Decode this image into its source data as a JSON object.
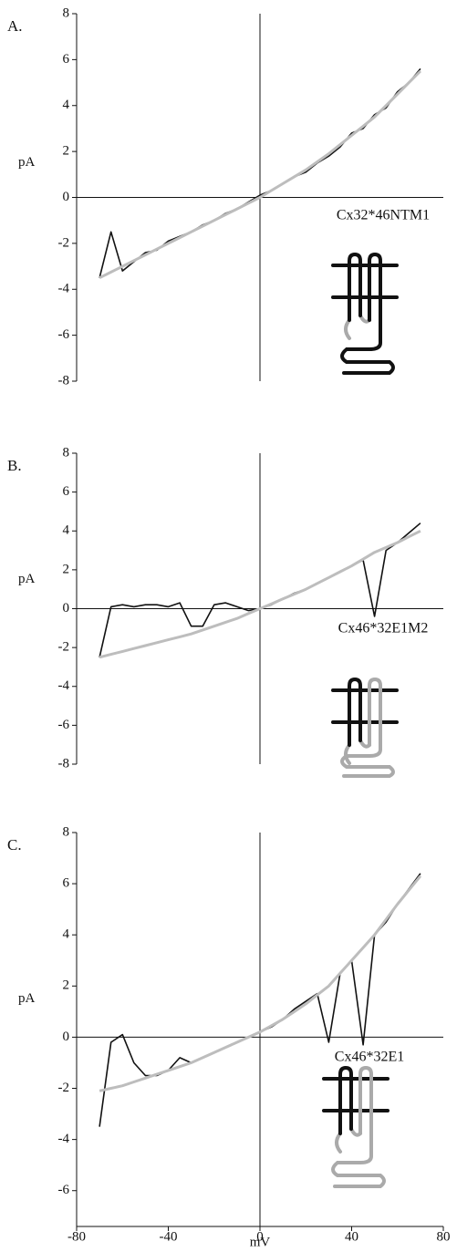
{
  "chart_data": [
    {
      "type": "line",
      "panel_label": "A.",
      "ylabel": "pA",
      "annotation": "Cx32*46NTM1",
      "x": [
        -70,
        -65,
        -60,
        -55,
        -50,
        -45,
        -40,
        -35,
        -30,
        -25,
        -20,
        -15,
        -10,
        -5,
        0,
        5,
        10,
        15,
        20,
        25,
        30,
        35,
        40,
        45,
        50,
        55,
        60,
        65,
        70
      ],
      "series": [
        {
          "color": "#111111",
          "values": [
            -3.5,
            -1.5,
            -3.2,
            -2.8,
            -2.4,
            -2.3,
            -1.9,
            -1.7,
            -1.5,
            -1.2,
            -1.0,
            -0.7,
            -0.5,
            -0.2,
            0.1,
            0.3,
            0.6,
            0.9,
            1.1,
            1.5,
            1.8,
            2.2,
            2.8,
            3.0,
            3.6,
            3.9,
            4.6,
            5.0,
            5.6
          ]
        },
        {
          "color": "#bdbdbd",
          "values": [
            -3.5,
            -3.25,
            -3.0,
            -2.75,
            -2.5,
            -2.25,
            -2.0,
            -1.75,
            -1.5,
            -1.25,
            -1.0,
            -0.75,
            -0.5,
            -0.25,
            0,
            0.3,
            0.6,
            0.9,
            1.2,
            1.55,
            1.9,
            2.3,
            2.7,
            3.1,
            3.5,
            4.0,
            4.5,
            5.0,
            5.5
          ]
        }
      ],
      "xlim": [
        -80,
        80
      ],
      "ylim": [
        -8,
        8
      ],
      "yticks": [
        -8,
        -6,
        -4,
        -2,
        0,
        2,
        4,
        6,
        8
      ]
    },
    {
      "type": "line",
      "panel_label": "B.",
      "ylabel": "pA",
      "annotation": "Cx46*32E1M2",
      "x": [
        -70,
        -65,
        -60,
        -55,
        -50,
        -45,
        -40,
        -35,
        -30,
        -25,
        -20,
        -15,
        -10,
        -5,
        0,
        5,
        10,
        15,
        20,
        25,
        30,
        35,
        40,
        45,
        50,
        55,
        60,
        65,
        70
      ],
      "series": [
        {
          "color": "#111111",
          "values": [
            -2.5,
            0.1,
            0.2,
            0.1,
            0.2,
            0.2,
            0.1,
            0.3,
            -0.9,
            -0.9,
            0.2,
            0.3,
            0.1,
            -0.1,
            0,
            0.2,
            0.5,
            0.8,
            1.0,
            1.3,
            1.6,
            1.9,
            2.2,
            2.5,
            -0.4,
            3.0,
            3.4,
            3.9,
            4.4
          ]
        },
        {
          "color": "#bdbdbd",
          "values": [
            -2.5,
            -2.35,
            -2.2,
            -2.05,
            -1.9,
            -1.75,
            -1.6,
            -1.45,
            -1.3,
            -1.1,
            -0.9,
            -0.7,
            -0.5,
            -0.25,
            0,
            0.25,
            0.5,
            0.75,
            1.0,
            1.3,
            1.6,
            1.9,
            2.2,
            2.55,
            2.9,
            3.15,
            3.4,
            3.7,
            4.0
          ]
        }
      ],
      "xlim": [
        -80,
        80
      ],
      "ylim": [
        -8,
        8
      ],
      "yticks": [
        -8,
        -6,
        -4,
        -2,
        0,
        2,
        4,
        6,
        8
      ]
    },
    {
      "type": "line",
      "panel_label": "C.",
      "ylabel": "pA",
      "annotation": "Cx46*32E1",
      "xlabel": "mV",
      "x": [
        -70,
        -65,
        -60,
        -55,
        -50,
        -45,
        -40,
        -35,
        -30,
        -25,
        -20,
        -15,
        -10,
        -5,
        0,
        5,
        10,
        15,
        20,
        25,
        30,
        35,
        40,
        45,
        50,
        55,
        60,
        65,
        70
      ],
      "series": [
        {
          "color": "#111111",
          "values": [
            -3.5,
            -0.2,
            0.1,
            -1.0,
            -1.5,
            -1.5,
            -1.3,
            -0.8,
            -1.0,
            -0.8,
            -0.6,
            -0.4,
            -0.2,
            0.0,
            0.2,
            0.4,
            0.7,
            1.1,
            1.4,
            1.7,
            -0.2,
            2.5,
            3.0,
            -0.3,
            4.0,
            4.5,
            5.2,
            5.8,
            6.4
          ]
        },
        {
          "color": "#bdbdbd",
          "values": [
            -2.1,
            -2.0,
            -1.9,
            -1.75,
            -1.6,
            -1.45,
            -1.3,
            -1.15,
            -1.0,
            -0.8,
            -0.6,
            -0.4,
            -0.2,
            0.0,
            0.2,
            0.45,
            0.7,
            1.0,
            1.3,
            1.65,
            2.0,
            2.5,
            3.0,
            3.5,
            4.0,
            4.6,
            5.2,
            5.75,
            6.3
          ]
        }
      ],
      "xlim": [
        -80,
        80
      ],
      "xticks": [
        -80,
        -40,
        0,
        40,
        80
      ],
      "ylim": [
        -7.4,
        8
      ],
      "yticks": [
        -6,
        -4,
        -2,
        0,
        2,
        4,
        6,
        8
      ]
    }
  ]
}
